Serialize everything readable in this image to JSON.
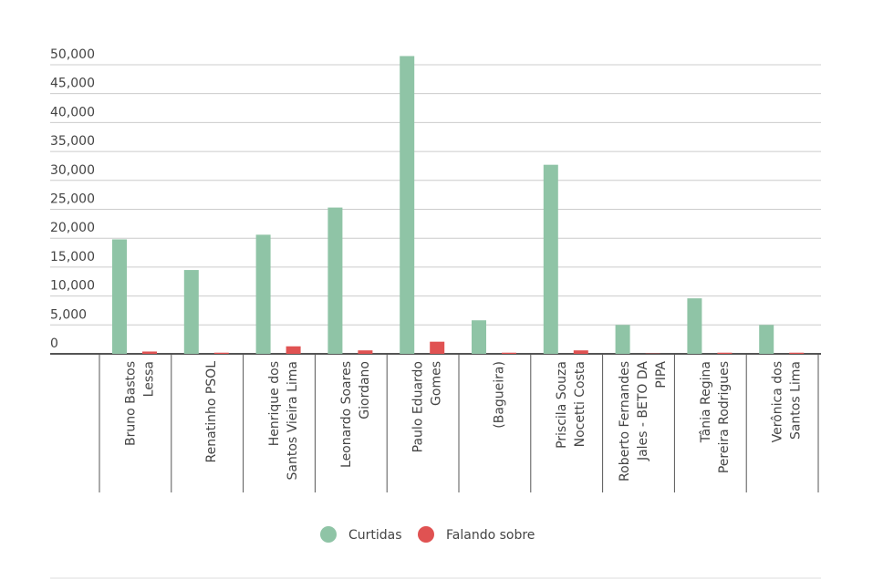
{
  "chart_data": {
    "type": "bar",
    "categories": [
      [
        "Bruno Bastos",
        "Lessa"
      ],
      [
        "Renatinho PSOL"
      ],
      [
        "Henrique dos",
        "Santos Vieira Lima"
      ],
      [
        "Leonardo Soares",
        "Giordano"
      ],
      [
        "Paulo Eduardo",
        "Gomes"
      ],
      [
        "(Bagueira)"
      ],
      [
        "Priscila Souza",
        "Nocetti Costa"
      ],
      [
        "Roberto Fernandes",
        "Jales - BETO DA",
        "PIPA"
      ],
      [
        "Tânia Regina",
        "Pereira Rodrigues"
      ],
      [
        "Verônica dos",
        "Santos Lima"
      ]
    ],
    "series": [
      {
        "name": "Curtidas",
        "color": "#8fc4a6",
        "values": [
          19800,
          14500,
          20600,
          25300,
          51500,
          5800,
          32700,
          5000,
          9600,
          5000
        ]
      },
      {
        "name": "Falando sobre",
        "color": "#e05252",
        "values": [
          400,
          200,
          1300,
          600,
          2100,
          200,
          600,
          50,
          200,
          200
        ]
      }
    ],
    "ylim": [
      0,
      52000
    ],
    "yticks": [
      0,
      {
        "value": 5000,
        "label": "5,000"
      },
      {
        "value": 10000,
        "label": "10,000"
      },
      {
        "value": 15000,
        "label": "15,000"
      },
      {
        "value": 20000,
        "label": "20,000"
      },
      {
        "value": 25000,
        "label": "25,000"
      },
      {
        "value": 30000,
        "label": "30,000"
      },
      {
        "value": 35000,
        "label": "35,000"
      },
      {
        "value": 40000,
        "label": "40,000"
      },
      {
        "value": 45000,
        "label": "45,000"
      },
      {
        "value": 50000,
        "label": "50,000"
      }
    ],
    "grid": true
  }
}
